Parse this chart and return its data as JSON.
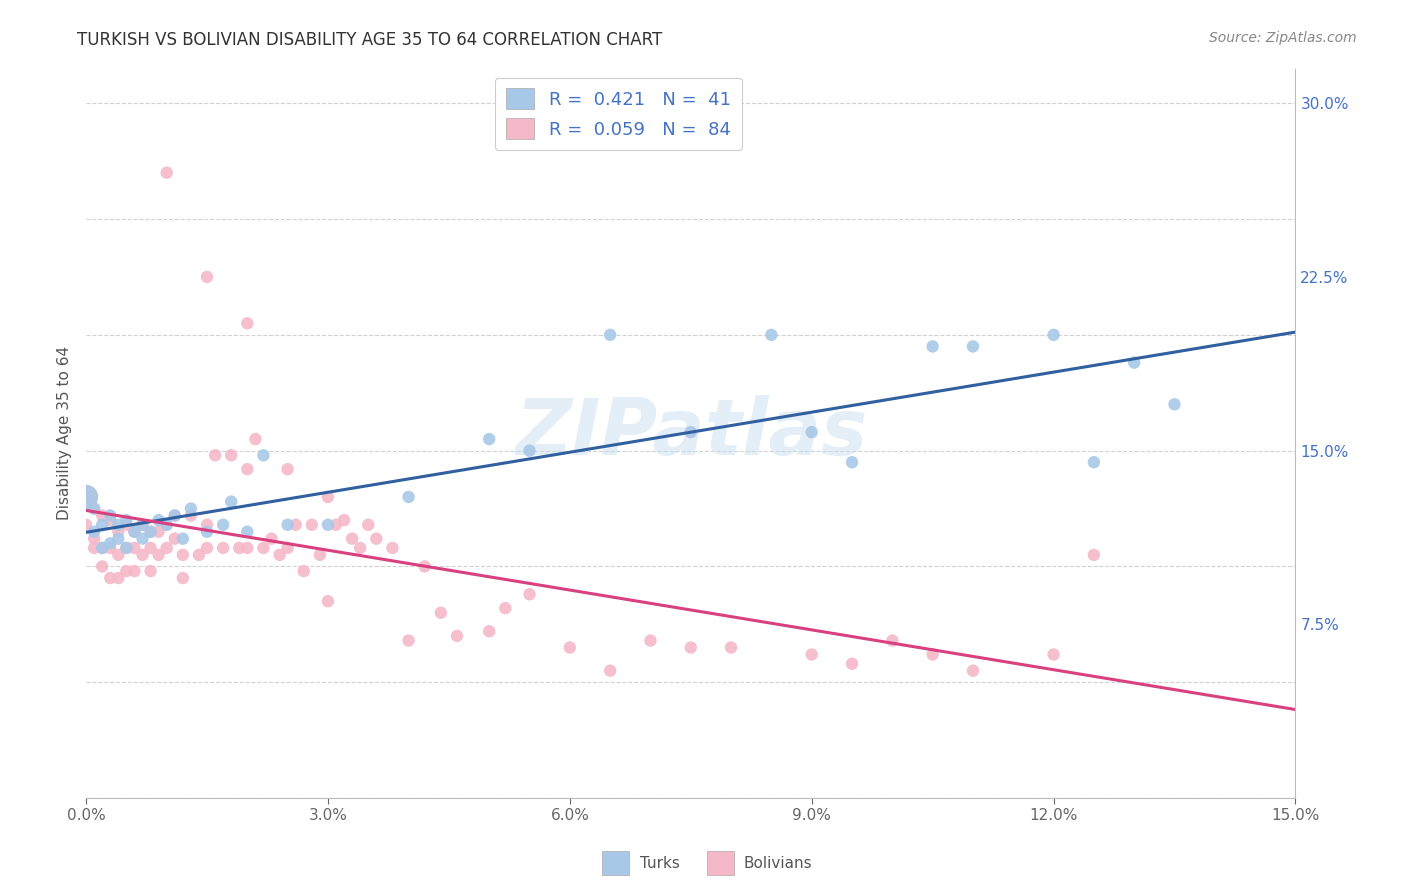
{
  "title": "TURKISH VS BOLIVIAN DISABILITY AGE 35 TO 64 CORRELATION CHART",
  "source": "Source: ZipAtlas.com",
  "ylabel": "Disability Age 35 to 64",
  "background_color": "#ffffff",
  "grid_color": "#cccccc",
  "turks_color": "#a8c8e8",
  "bolivians_color": "#f4b8c8",
  "turks_line_color": "#3060a0",
  "bolivians_line_color": "#d84080",
  "xlim": [
    0.0,
    0.15
  ],
  "ylim": [
    0.0,
    0.315
  ],
  "xticks": [
    0.0,
    0.03,
    0.06,
    0.09,
    0.12,
    0.15
  ],
  "xtick_labels": [
    "0.0%",
    "3.0%",
    "6.0%",
    "9.0%",
    "12.0%",
    "15.0%"
  ],
  "yticks_right": [
    0.075,
    0.15,
    0.225,
    0.3
  ],
  "ytick_labels_right": [
    "7.5%",
    "15.0%",
    "22.5%",
    "30.0%"
  ],
  "turks_x": [
    0.0,
    0.001,
    0.001,
    0.002,
    0.002,
    0.003,
    0.003,
    0.004,
    0.004,
    0.005,
    0.005,
    0.006,
    0.007,
    0.007,
    0.008,
    0.009,
    0.01,
    0.011,
    0.012,
    0.013,
    0.015,
    0.017,
    0.018,
    0.02,
    0.022,
    0.025,
    0.03,
    0.04,
    0.05,
    0.055,
    0.065,
    0.075,
    0.085,
    0.09,
    0.095,
    0.105,
    0.11,
    0.12,
    0.125,
    0.13,
    0.135
  ],
  "turks_y": [
    0.13,
    0.125,
    0.115,
    0.118,
    0.108,
    0.122,
    0.11,
    0.118,
    0.112,
    0.12,
    0.108,
    0.115,
    0.118,
    0.112,
    0.115,
    0.12,
    0.118,
    0.122,
    0.112,
    0.125,
    0.115,
    0.118,
    0.128,
    0.115,
    0.148,
    0.118,
    0.118,
    0.13,
    0.155,
    0.15,
    0.2,
    0.158,
    0.2,
    0.158,
    0.145,
    0.195,
    0.195,
    0.2,
    0.145,
    0.188,
    0.17
  ],
  "turks_size": [
    300,
    80,
    80,
    80,
    80,
    80,
    80,
    80,
    80,
    80,
    80,
    80,
    80,
    80,
    80,
    80,
    80,
    80,
    80,
    80,
    80,
    80,
    80,
    80,
    80,
    80,
    80,
    80,
    80,
    80,
    80,
    80,
    80,
    80,
    80,
    80,
    80,
    80,
    80,
    80,
    80
  ],
  "bolivians_x": [
    0.0,
    0.0,
    0.001,
    0.001,
    0.001,
    0.002,
    0.002,
    0.002,
    0.003,
    0.003,
    0.003,
    0.004,
    0.004,
    0.004,
    0.005,
    0.005,
    0.005,
    0.006,
    0.006,
    0.006,
    0.007,
    0.007,
    0.008,
    0.008,
    0.008,
    0.009,
    0.009,
    0.01,
    0.01,
    0.011,
    0.011,
    0.012,
    0.012,
    0.013,
    0.014,
    0.015,
    0.015,
    0.016,
    0.017,
    0.018,
    0.019,
    0.02,
    0.02,
    0.021,
    0.022,
    0.023,
    0.024,
    0.025,
    0.025,
    0.026,
    0.027,
    0.028,
    0.029,
    0.03,
    0.031,
    0.032,
    0.033,
    0.034,
    0.035,
    0.036,
    0.038,
    0.04,
    0.042,
    0.044,
    0.046,
    0.05,
    0.052,
    0.055,
    0.06,
    0.065,
    0.07,
    0.075,
    0.08,
    0.09,
    0.095,
    0.1,
    0.105,
    0.11,
    0.12,
    0.125,
    0.03,
    0.02,
    0.015,
    0.01
  ],
  "bolivians_y": [
    0.13,
    0.118,
    0.125,
    0.112,
    0.108,
    0.122,
    0.108,
    0.1,
    0.12,
    0.108,
    0.095,
    0.115,
    0.105,
    0.095,
    0.118,
    0.108,
    0.098,
    0.115,
    0.108,
    0.098,
    0.118,
    0.105,
    0.115,
    0.108,
    0.098,
    0.115,
    0.105,
    0.118,
    0.108,
    0.122,
    0.112,
    0.105,
    0.095,
    0.122,
    0.105,
    0.118,
    0.108,
    0.148,
    0.108,
    0.148,
    0.108,
    0.142,
    0.108,
    0.155,
    0.108,
    0.112,
    0.105,
    0.142,
    0.108,
    0.118,
    0.098,
    0.118,
    0.105,
    0.13,
    0.118,
    0.12,
    0.112,
    0.108,
    0.118,
    0.112,
    0.108,
    0.068,
    0.1,
    0.08,
    0.07,
    0.072,
    0.082,
    0.088,
    0.065,
    0.055,
    0.068,
    0.065,
    0.065,
    0.062,
    0.058,
    0.068,
    0.062,
    0.055,
    0.062,
    0.105,
    0.085,
    0.205,
    0.225,
    0.27
  ],
  "bolivians_size": [
    300,
    80,
    80,
    80,
    80,
    80,
    80,
    80,
    80,
    80,
    80,
    80,
    80,
    80,
    80,
    80,
    80,
    80,
    80,
    80,
    80,
    80,
    80,
    80,
    80,
    80,
    80,
    80,
    80,
    80,
    80,
    80,
    80,
    80,
    80,
    80,
    80,
    80,
    80,
    80,
    80,
    80,
    80,
    80,
    80,
    80,
    80,
    80,
    80,
    80,
    80,
    80,
    80,
    80,
    80,
    80,
    80,
    80,
    80,
    80,
    80,
    80,
    80,
    80,
    80,
    80,
    80,
    80,
    80,
    80,
    80,
    80,
    80,
    80,
    80,
    80,
    80,
    80,
    80,
    80,
    80,
    80,
    80,
    80
  ]
}
